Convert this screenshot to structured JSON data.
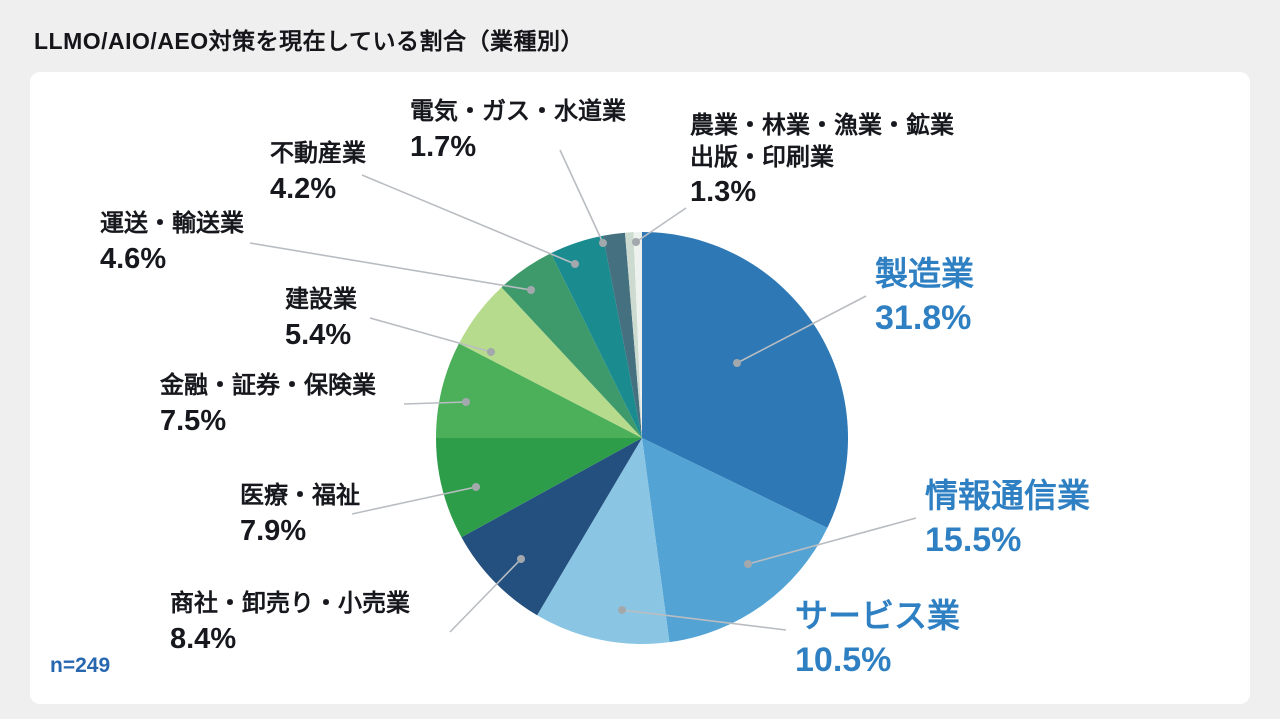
{
  "chart_data": {
    "type": "pie",
    "title": "LLMO/AIO/AEO対策を現在している割合（業種別）",
    "sample_size_label": "n=249",
    "start_angle_deg": 0,
    "direction": "clockwise",
    "legend_position": "callout-labels",
    "segments": [
      {
        "label": "製造業",
        "value": 31.8,
        "pct": "31.8%",
        "color": "#2e79b5",
        "emphasized": true
      },
      {
        "label": "情報通信業",
        "value": 15.5,
        "pct": "15.5%",
        "color": "#54a3d5",
        "emphasized": true
      },
      {
        "label": "サービス業",
        "value": 10.5,
        "pct": "10.5%",
        "color": "#8ac6e3",
        "emphasized": true
      },
      {
        "label": "商社・卸売り・小売業",
        "value": 8.4,
        "pct": "8.4%",
        "color": "#24507f",
        "emphasized": false
      },
      {
        "label": "医療・福祉",
        "value": 7.9,
        "pct": "7.9%",
        "color": "#2e9d4a",
        "emphasized": false
      },
      {
        "label": "金融・証券・保険業",
        "value": 7.5,
        "pct": "7.5%",
        "color": "#4cb05a",
        "emphasized": false
      },
      {
        "label": "建設業",
        "value": 5.4,
        "pct": "5.4%",
        "color": "#b7db8d",
        "emphasized": false
      },
      {
        "label": "運送・輸送業",
        "value": 4.6,
        "pct": "4.6%",
        "color": "#3f9a6b",
        "emphasized": false
      },
      {
        "label": "不動産業",
        "value": 4.2,
        "pct": "4.2%",
        "color": "#1a8c90",
        "emphasized": false
      },
      {
        "label": "電気・ガス・水道業",
        "value": 1.7,
        "pct": "1.7%",
        "color": "#45707f",
        "emphasized": false
      },
      {
        "label": "農業・林業・漁業・鉱業",
        "label2": "出版・印刷業",
        "value": 1.3,
        "pct": "1.3%",
        "color": "#ccdacf",
        "colors": [
          "#ccdacf",
          "#eef2ee"
        ],
        "emphasized": false
      }
    ],
    "colors": {
      "accent_blue": "#2f80c3",
      "dark_text": "#17181d",
      "leader_line": "#b9bdc2",
      "leader_dot": "#a3a8ad",
      "background": "#efefef",
      "card": "#ffffff"
    }
  }
}
